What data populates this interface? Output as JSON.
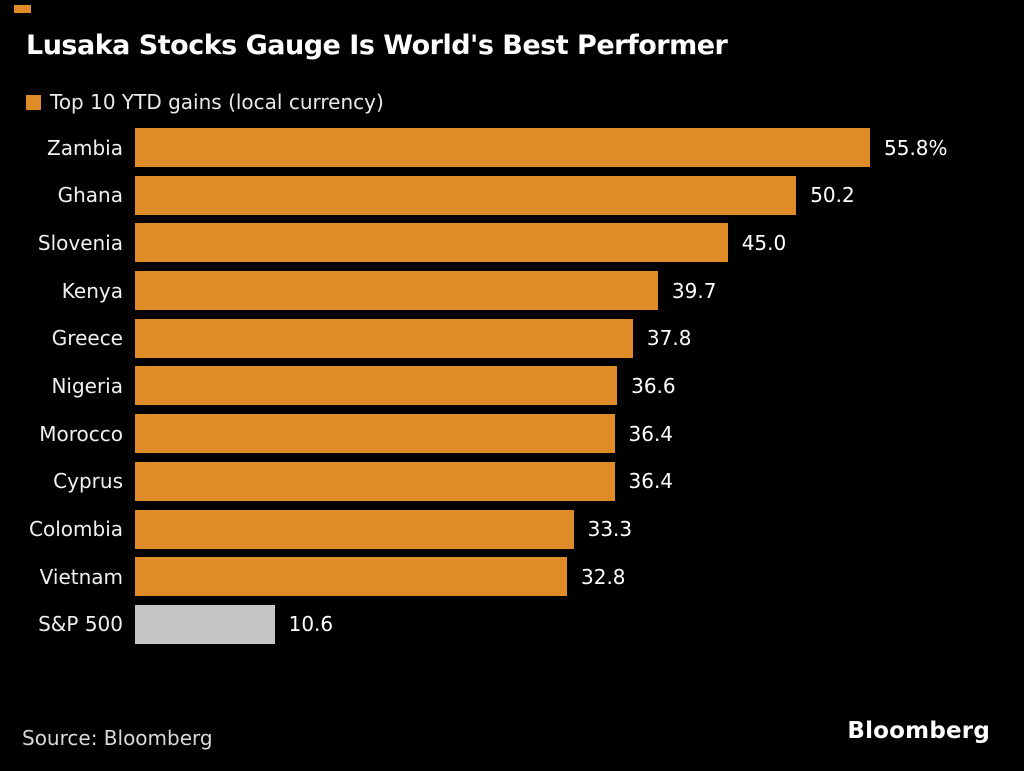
{
  "header": {
    "title": "Lusaka Stocks Gauge Is World's Best Performer"
  },
  "legend": {
    "label": "Top 10 YTD gains (local currency)"
  },
  "colors": {
    "background": "#000000",
    "bar_orange": "#df8b28",
    "bar_gray": "#c5c5c5",
    "accent": "#df8b28",
    "text_primary": "#ffffff",
    "text_secondary": "#e9e9e9"
  },
  "chart_data": {
    "type": "bar",
    "orientation": "horizontal",
    "title": "Lusaka Stocks Gauge Is World's Best Performer",
    "legend": "Top 10 YTD gains (local currency)",
    "categories": [
      "Zambia",
      "Ghana",
      "Slovenia",
      "Kenya",
      "Greece",
      "Nigeria",
      "Morocco",
      "Cyprus",
      "Colombia",
      "Vietnam",
      "S&P 500"
    ],
    "values": [
      55.8,
      50.2,
      45.0,
      39.7,
      37.8,
      36.6,
      36.4,
      36.4,
      33.3,
      32.8,
      10.6
    ],
    "value_labels": [
      "55.8%",
      "50.2",
      "45.0",
      "39.7",
      "37.8",
      "36.6",
      "36.4",
      "36.4",
      "33.3",
      "32.8",
      "10.6"
    ],
    "colors": [
      "#df8b28",
      "#df8b28",
      "#df8b28",
      "#df8b28",
      "#df8b28",
      "#df8b28",
      "#df8b28",
      "#df8b28",
      "#df8b28",
      "#df8b28",
      "#c5c5c5"
    ],
    "xlim": [
      0,
      55.8
    ],
    "unit": "percent",
    "grid": false,
    "legend_position": "top-left"
  },
  "footer": {
    "source": "Source: Bloomberg",
    "logo": "Bloomberg"
  }
}
